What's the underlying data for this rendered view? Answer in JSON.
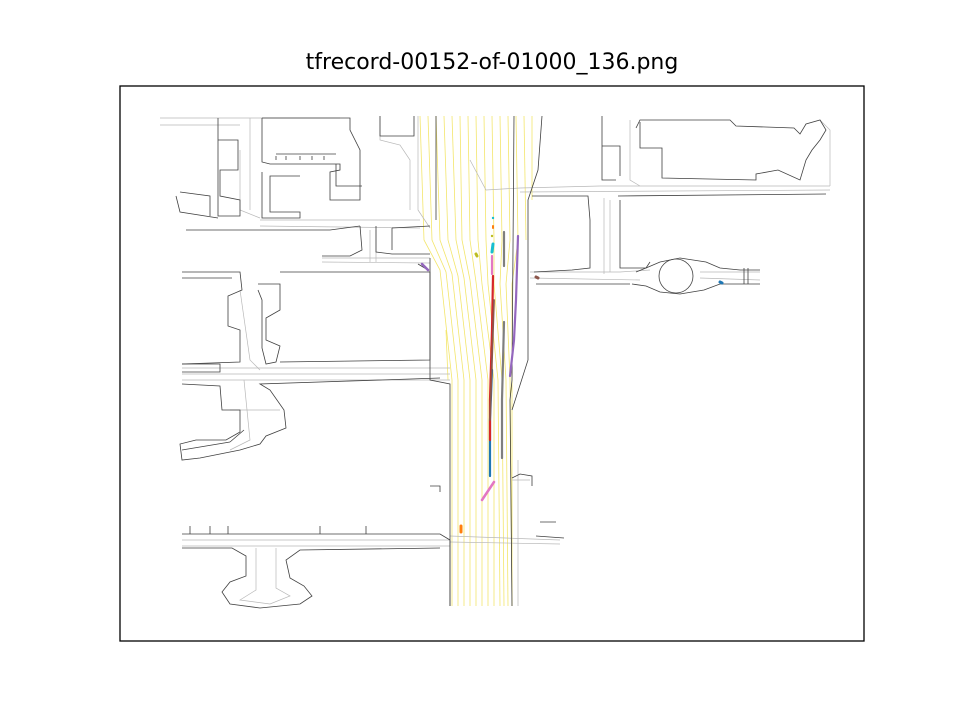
{
  "figure": {
    "title": "tfrecord-00152-of-01000_136.png"
  },
  "map_colors": {
    "road_edge": "#333333",
    "lane_boundary": "#b0b0b0",
    "lane_center": "#f2e35c",
    "frame": "#000000"
  },
  "agent_tracks": [
    {
      "color": "#1f77b4"
    },
    {
      "color": "#ff7f0e"
    },
    {
      "color": "#2ca02c"
    },
    {
      "color": "#d62728"
    },
    {
      "color": "#9467bd"
    },
    {
      "color": "#8c564b"
    },
    {
      "color": "#e377c2"
    },
    {
      "color": "#7f7f7f"
    },
    {
      "color": "#bcbd22"
    },
    {
      "color": "#17becf"
    }
  ]
}
